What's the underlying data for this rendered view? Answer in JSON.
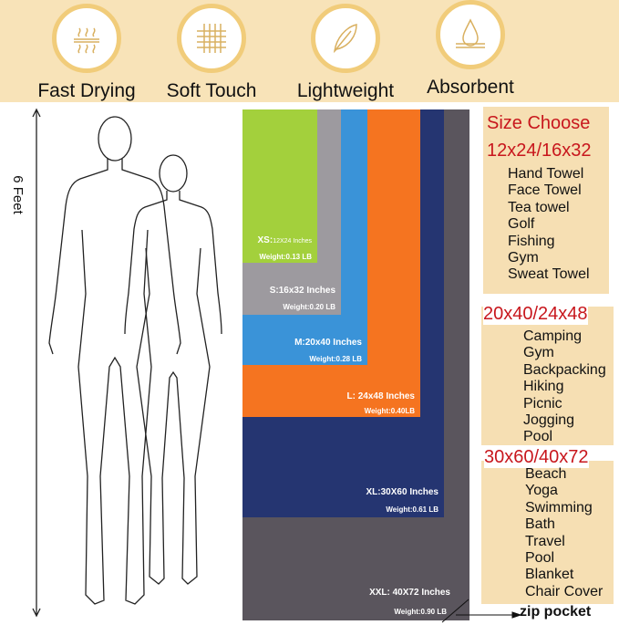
{
  "features": [
    {
      "label": "Fast Drying",
      "icon": "heat-waves-icon"
    },
    {
      "label": "Soft Touch",
      "icon": "weave-icon"
    },
    {
      "label": "Lightweight",
      "icon": "feather-icon"
    },
    {
      "label": "Absorbent",
      "icon": "water-drop-icon"
    }
  ],
  "height_label": "6 Feet",
  "sizes": [
    {
      "name": "XS:",
      "dims": "12X24 Inches",
      "weight": "Weight:0.13 LB",
      "color": "#a3d03c"
    },
    {
      "name": "S:16x32 Inches",
      "weight": "Weight:0.20 LB",
      "color": "#9d9a9f"
    },
    {
      "name": "M:20x40 Inches",
      "weight": "Weight:0.28 LB",
      "color": "#3a93d8"
    },
    {
      "name": "L: 24x48 Inches",
      "weight": "Weight:0.40LB",
      "color": "#f57420"
    },
    {
      "name": "XL:30X60 Inches",
      "weight": "Weight:0.61 LB",
      "color": "#253571"
    },
    {
      "name": "XXL: 40X72 Inches",
      "weight": "Weight:0.90 LB",
      "color": "#5a555d"
    }
  ],
  "size_choose": {
    "title": "Size Choose",
    "groups": [
      {
        "heading": "12x24/16x32",
        "uses": [
          "Hand Towel",
          "Face Towel",
          "Tea towel",
          "Golf",
          "Fishing",
          "Gym",
          "Sweat Towel"
        ]
      },
      {
        "heading": "20x40/24x48",
        "uses": [
          "Camping",
          "Gym",
          "Backpacking",
          "Hiking",
          "Picnic",
          "Jogging",
          "Pool"
        ]
      },
      {
        "heading": "30x60/40x72",
        "uses": [
          "Beach",
          "Yoga",
          "Swimming",
          "Bath",
          "Travel",
          "Pool",
          "Blanket",
          "Chair Cover"
        ]
      }
    ]
  },
  "zip_pocket": "zip pocket"
}
